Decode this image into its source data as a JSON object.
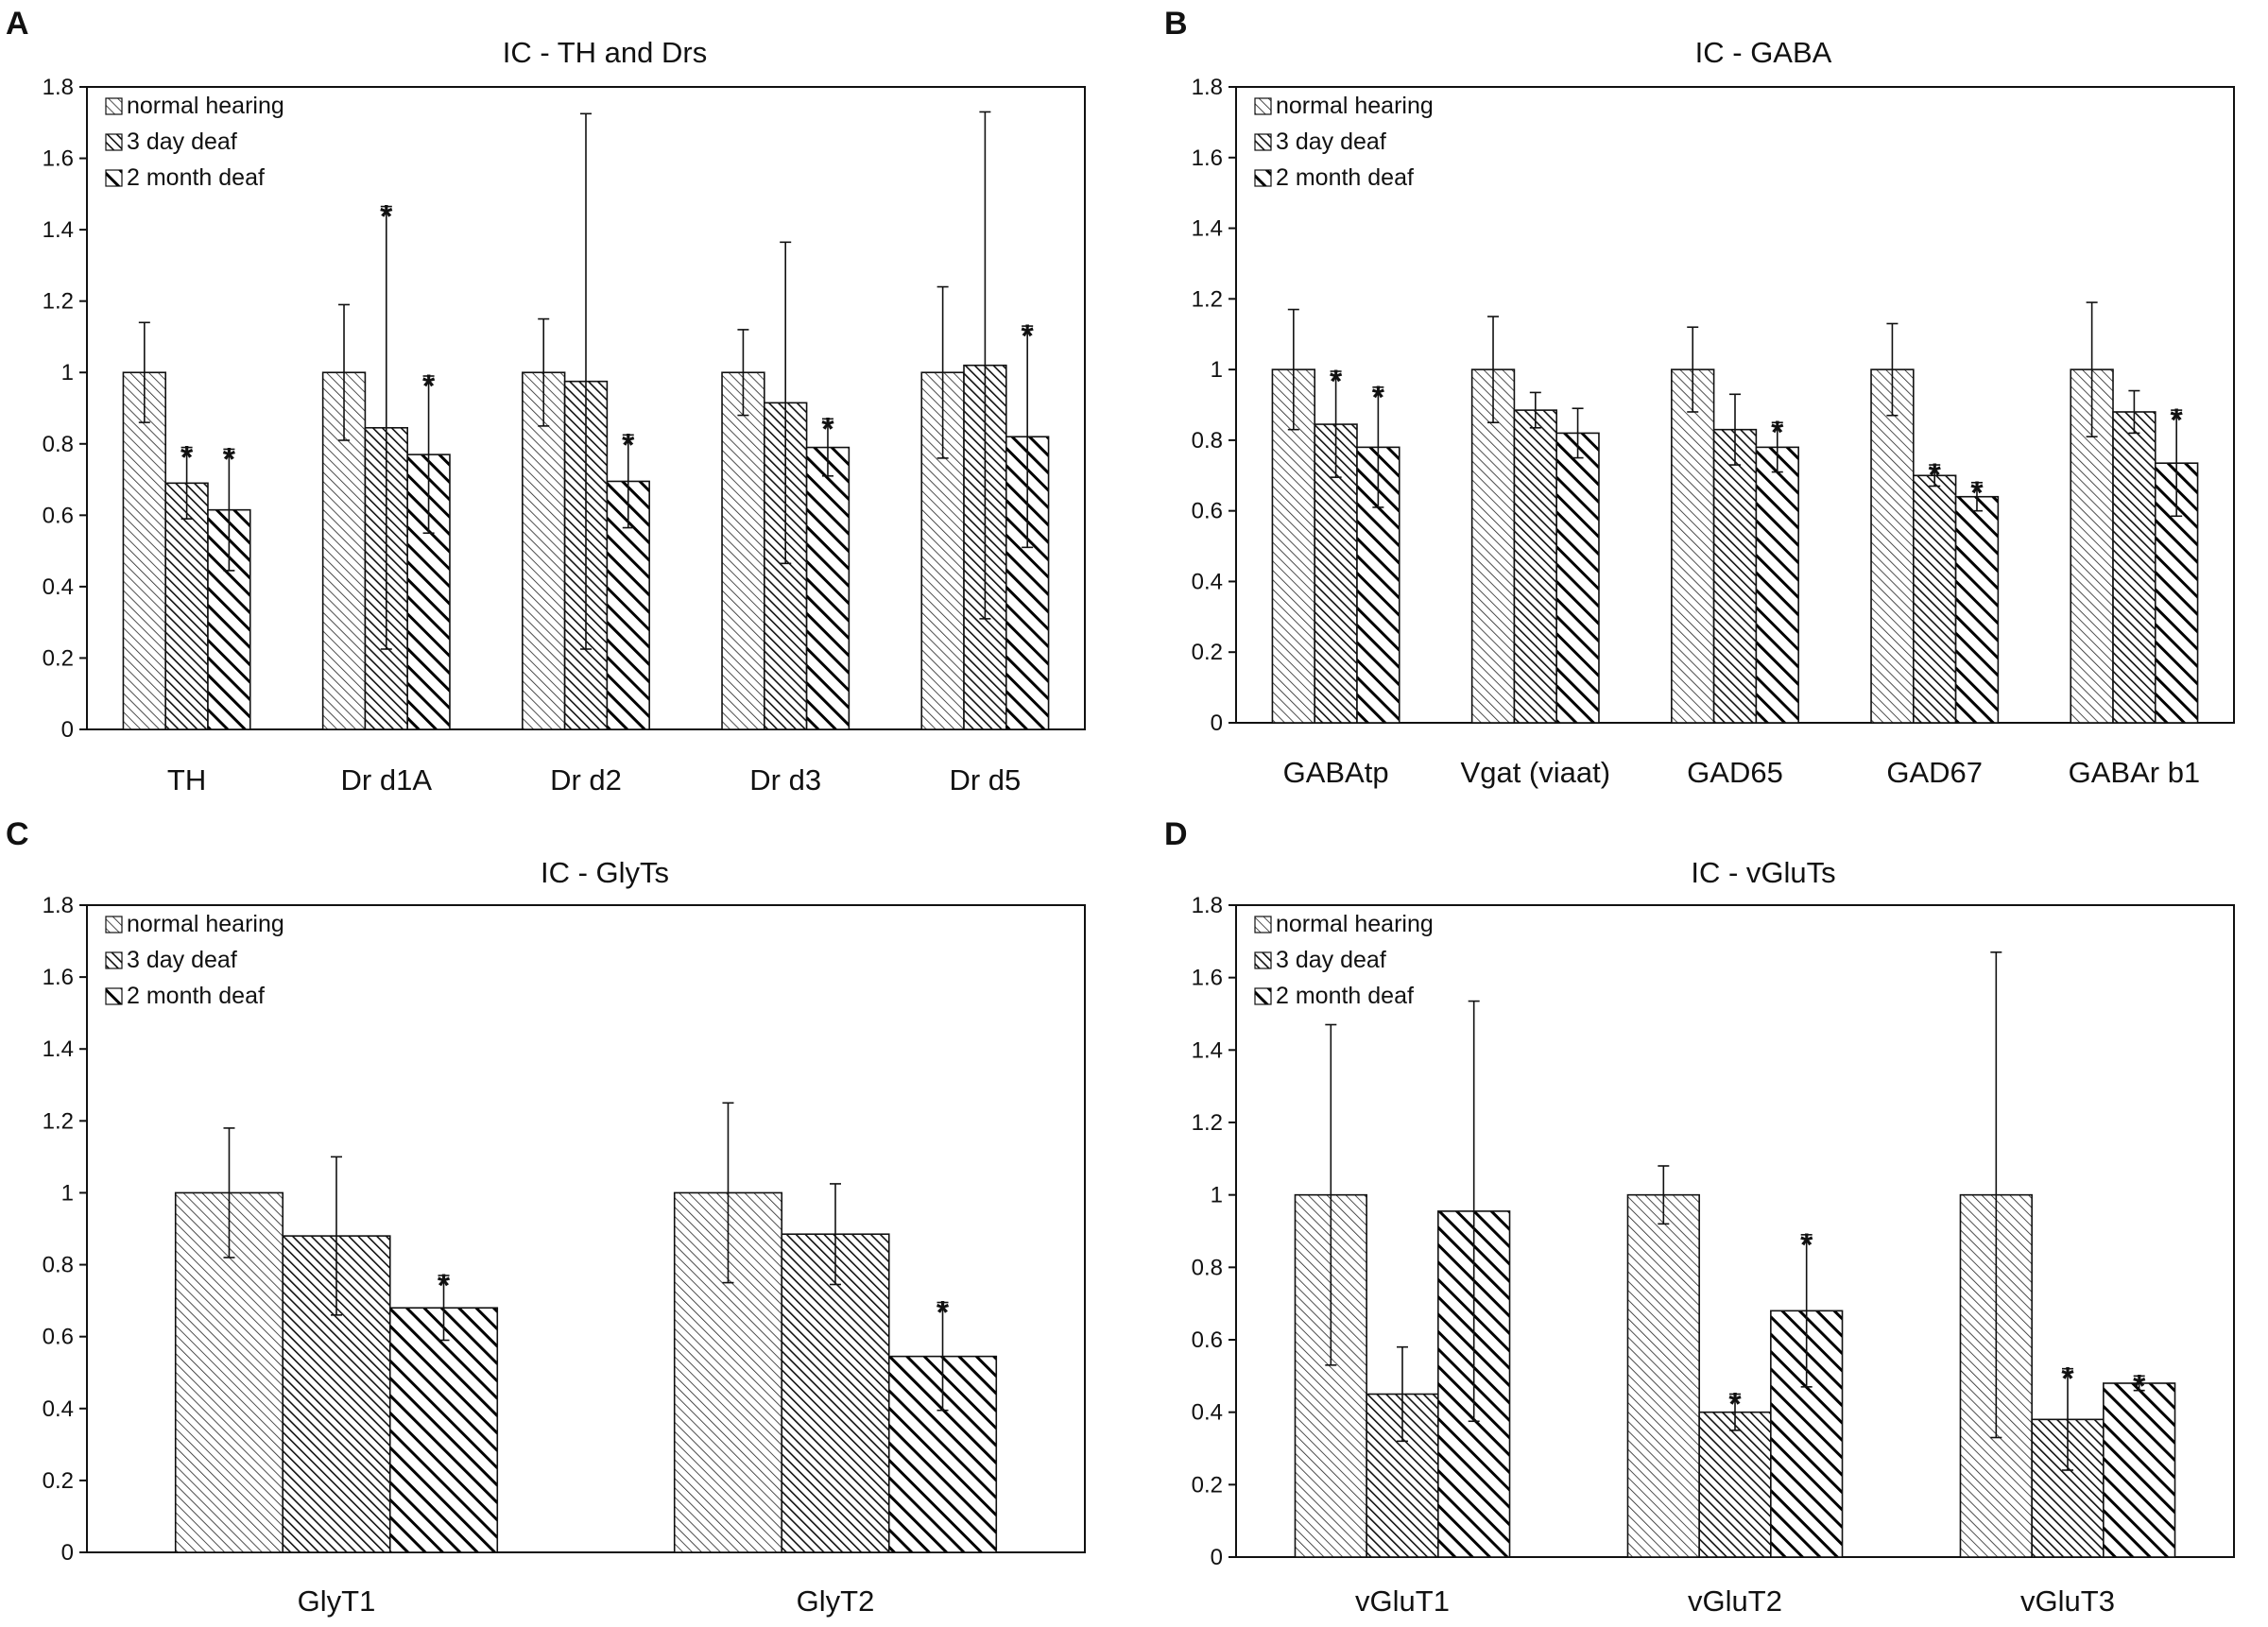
{
  "chart_data": [
    {
      "panel": "A",
      "type": "bar",
      "title": "IC - TH and Drs",
      "xlabel": "",
      "ylabel": "",
      "ylim": [
        0,
        1.8
      ],
      "yticks": [
        "0",
        "0.2",
        "0.4",
        "0.6",
        "0.8",
        "1",
        "1.2",
        "1.4",
        "1.6",
        "1.8"
      ],
      "legend_position": "top-left",
      "categories": [
        "TH",
        "Dr d1A",
        "Dr d2",
        "Dr d3",
        "Dr d5"
      ],
      "series": [
        {
          "name": "normal hearing",
          "pattern": "fine",
          "values": [
            1.0,
            1.0,
            1.0,
            1.0,
            1.0
          ],
          "errors": [
            0.14,
            0.19,
            0.15,
            0.12,
            0.24
          ],
          "significant": [
            false,
            false,
            false,
            false,
            false
          ]
        },
        {
          "name": "3 day deaf",
          "pattern": "medium",
          "values": [
            0.69,
            0.845,
            0.975,
            0.915,
            1.02
          ],
          "errors": [
            0.1,
            0.62,
            0.75,
            0.45,
            0.71
          ],
          "significant": [
            true,
            true,
            false,
            false,
            false
          ]
        },
        {
          "name": "2 month deaf",
          "pattern": "bold",
          "values": [
            0.615,
            0.77,
            0.695,
            0.79,
            0.82
          ],
          "errors": [
            0.17,
            0.22,
            0.13,
            0.08,
            0.31
          ],
          "significant": [
            true,
            true,
            true,
            true,
            true
          ]
        }
      ]
    },
    {
      "panel": "B",
      "type": "bar",
      "title": "IC - GABA",
      "xlabel": "",
      "ylabel": "",
      "ylim": [
        0,
        1.8
      ],
      "yticks": [
        "0",
        "0.2",
        "0.4",
        "0.6",
        "0.8",
        "1",
        "1.2",
        "1.4",
        "1.6",
        "1.8"
      ],
      "legend_position": "top-left",
      "categories": [
        "GABAtp",
        "Vgat (viaat)",
        "GAD65",
        "GAD67",
        "GABAr b1"
      ],
      "series": [
        {
          "name": "normal hearing",
          "pattern": "fine",
          "values": [
            1.0,
            1.0,
            1.0,
            1.0,
            1.0
          ],
          "errors": [
            0.17,
            0.15,
            0.12,
            0.13,
            0.19
          ],
          "significant": [
            false,
            false,
            false,
            false,
            false
          ]
        },
        {
          "name": "3 day deaf",
          "pattern": "medium",
          "values": [
            0.845,
            0.885,
            0.83,
            0.7,
            0.88
          ],
          "errors": [
            0.15,
            0.05,
            0.1,
            0.03,
            0.06
          ],
          "significant": [
            true,
            false,
            false,
            true,
            false
          ]
        },
        {
          "name": "2 month deaf",
          "pattern": "bold",
          "values": [
            0.78,
            0.82,
            0.78,
            0.64,
            0.735
          ],
          "errors": [
            0.17,
            0.07,
            0.07,
            0.04,
            0.15
          ],
          "significant": [
            true,
            false,
            true,
            true,
            true
          ]
        }
      ]
    },
    {
      "panel": "C",
      "type": "bar",
      "title": "IC - GlyTs",
      "xlabel": "",
      "ylabel": "",
      "ylim": [
        0,
        1.8
      ],
      "yticks": [
        "0",
        "0.2",
        "0.4",
        "0.6",
        "0.8",
        "1",
        "1.2",
        "1.4",
        "1.6",
        "1.8"
      ],
      "legend_position": "top-left",
      "categories": [
        "GlyT1",
        "GlyT2"
      ],
      "series": [
        {
          "name": "normal hearing",
          "pattern": "fine",
          "values": [
            1.0,
            1.0
          ],
          "errors": [
            0.18,
            0.25
          ],
          "significant": [
            false,
            false
          ]
        },
        {
          "name": "3 day deaf",
          "pattern": "medium",
          "values": [
            0.88,
            0.885
          ],
          "errors": [
            0.22,
            0.14
          ],
          "significant": [
            false,
            false
          ]
        },
        {
          "name": "2 month deaf",
          "pattern": "bold",
          "values": [
            0.68,
            0.545
          ],
          "errors": [
            0.09,
            0.15
          ],
          "significant": [
            true,
            true
          ]
        }
      ]
    },
    {
      "panel": "D",
      "type": "bar",
      "title": "IC - vGluTs",
      "xlabel": "",
      "ylabel": "",
      "ylim": [
        0,
        1.8
      ],
      "yticks": [
        "0",
        "0.2",
        "0.4",
        "0.6",
        "0.8",
        "1",
        "1.2",
        "1.4",
        "1.6",
        "1.8"
      ],
      "legend_position": "top-left",
      "categories": [
        "vGluT1",
        "vGluT2",
        "vGluT3"
      ],
      "series": [
        {
          "name": "normal hearing",
          "pattern": "fine",
          "values": [
            1.0,
            1.0,
            1.0
          ],
          "errors": [
            0.47,
            0.08,
            0.67
          ],
          "significant": [
            false,
            false,
            false
          ]
        },
        {
          "name": "3 day deaf",
          "pattern": "medium",
          "values": [
            0.45,
            0.4,
            0.38
          ],
          "errors": [
            0.13,
            0.05,
            0.14
          ],
          "significant": [
            false,
            true,
            true
          ]
        },
        {
          "name": "2 month deaf",
          "pattern": "bold",
          "values": [
            0.955,
            0.68,
            0.48
          ],
          "errors": [
            0.58,
            0.21,
            0.02
          ],
          "significant": [
            false,
            true,
            true
          ]
        }
      ]
    }
  ]
}
